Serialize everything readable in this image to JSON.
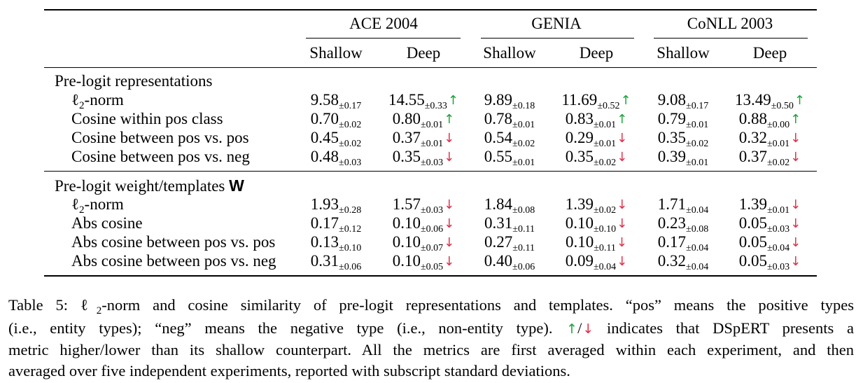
{
  "table": {
    "datasets": [
      {
        "name": "ACE 2004",
        "cols": [
          "Shallow",
          "Deep"
        ]
      },
      {
        "name": "GENIA",
        "cols": [
          "Shallow",
          "Deep"
        ]
      },
      {
        "name": "CoNLL 2003",
        "cols": [
          "Shallow",
          "Deep"
        ]
      }
    ],
    "sections": [
      {
        "title": "Pre-logit representations",
        "rows": [
          {
            "label_prefix": "ℓ",
            "label_sub": "2",
            "label_suffix": "-norm",
            "cells": [
              {
                "v": "9.58",
                "s": "±0.17",
                "a": ""
              },
              {
                "v": "14.55",
                "s": "±0.33",
                "a": "up"
              },
              {
                "v": "9.89",
                "s": "±0.18",
                "a": ""
              },
              {
                "v": "11.69",
                "s": "±0.52",
                "a": "up"
              },
              {
                "v": "9.08",
                "s": "±0.17",
                "a": ""
              },
              {
                "v": "13.49",
                "s": "±0.50",
                "a": "up"
              }
            ]
          },
          {
            "label": "Cosine within pos class",
            "cells": [
              {
                "v": "0.70",
                "s": "±0.02",
                "a": ""
              },
              {
                "v": "0.80",
                "s": "±0.01",
                "a": "up"
              },
              {
                "v": "0.78",
                "s": "±0.01",
                "a": ""
              },
              {
                "v": "0.83",
                "s": "±0.01",
                "a": "up"
              },
              {
                "v": "0.79",
                "s": "±0.01",
                "a": ""
              },
              {
                "v": "0.88",
                "s": "±0.00",
                "a": "up"
              }
            ]
          },
          {
            "label": "Cosine between pos vs. pos",
            "cells": [
              {
                "v": "0.45",
                "s": "±0.02",
                "a": ""
              },
              {
                "v": "0.37",
                "s": "±0.01",
                "a": "down"
              },
              {
                "v": "0.54",
                "s": "±0.02",
                "a": ""
              },
              {
                "v": "0.29",
                "s": "±0.01",
                "a": "down"
              },
              {
                "v": "0.35",
                "s": "±0.02",
                "a": ""
              },
              {
                "v": "0.32",
                "s": "±0.01",
                "a": "down"
              }
            ]
          },
          {
            "label": "Cosine between pos vs. neg",
            "cells": [
              {
                "v": "0.48",
                "s": "±0.03",
                "a": ""
              },
              {
                "v": "0.35",
                "s": "±0.03",
                "a": "down"
              },
              {
                "v": "0.55",
                "s": "±0.01",
                "a": ""
              },
              {
                "v": "0.35",
                "s": "±0.02",
                "a": "down"
              },
              {
                "v": "0.39",
                "s": "±0.01",
                "a": ""
              },
              {
                "v": "0.37",
                "s": "±0.02",
                "a": "down"
              }
            ]
          }
        ]
      },
      {
        "title": "Pre-logit weight/templates ",
        "title_bold": "W",
        "rows": [
          {
            "label_prefix": "ℓ",
            "label_sub": "2",
            "label_suffix": "-norm",
            "cells": [
              {
                "v": "1.93",
                "s": "±0.28",
                "a": ""
              },
              {
                "v": "1.57",
                "s": "±0.03",
                "a": "down"
              },
              {
                "v": "1.84",
                "s": "±0.08",
                "a": ""
              },
              {
                "v": "1.39",
                "s": "±0.02",
                "a": "down"
              },
              {
                "v": "1.71",
                "s": "±0.04",
                "a": ""
              },
              {
                "v": "1.39",
                "s": "±0.01",
                "a": "down"
              }
            ]
          },
          {
            "label": "Abs cosine",
            "cells": [
              {
                "v": "0.17",
                "s": "±0.12",
                "a": ""
              },
              {
                "v": "0.10",
                "s": "±0.06",
                "a": "down"
              },
              {
                "v": "0.31",
                "s": "±0.11",
                "a": ""
              },
              {
                "v": "0.10",
                "s": "±0.10",
                "a": "down"
              },
              {
                "v": "0.23",
                "s": "±0.08",
                "a": ""
              },
              {
                "v": "0.05",
                "s": "±0.03",
                "a": "down"
              }
            ]
          },
          {
            "label": "Abs cosine between pos vs. pos",
            "cells": [
              {
                "v": "0.13",
                "s": "±0.10",
                "a": ""
              },
              {
                "v": "0.10",
                "s": "±0.07",
                "a": "down"
              },
              {
                "v": "0.27",
                "s": "±0.11",
                "a": ""
              },
              {
                "v": "0.10",
                "s": "±0.11",
                "a": "down"
              },
              {
                "v": "0.17",
                "s": "±0.04",
                "a": ""
              },
              {
                "v": "0.05",
                "s": "±0.04",
                "a": "down"
              }
            ]
          },
          {
            "label": "Abs cosine between pos vs. neg",
            "cells": [
              {
                "v": "0.31",
                "s": "±0.06",
                "a": ""
              },
              {
                "v": "0.10",
                "s": "±0.05",
                "a": "down"
              },
              {
                "v": "0.40",
                "s": "±0.06",
                "a": ""
              },
              {
                "v": "0.09",
                "s": "±0.04",
                "a": "down"
              },
              {
                "v": "0.32",
                "s": "±0.04",
                "a": ""
              },
              {
                "v": "0.05",
                "s": "±0.03",
                "a": "down"
              }
            ]
          }
        ]
      }
    ]
  },
  "arrows": {
    "up": "↑",
    "down": "↓",
    "up_color": "#1aa33a",
    "down_color": "#e0304a"
  },
  "caption": {
    "l1_a": "Table 5: ",
    "l1_ell": "ℓ",
    "l1_sub": "2",
    "l1_b": "-norm and cosine similarity of pre-logit representations and templates. “pos” means the positive types",
    "l2_a": "(i.e., entity types); “neg” means the negative type (i.e., non-entity type). ",
    "l2_sep": "/",
    "l2_b": " indicates that DSpERT presents a",
    "l3": "metric higher/lower than its shallow counterpart. All the metrics are first averaged within each experiment, and then",
    "l4": "averaged over five independent experiments, reported with subscript standard deviations."
  }
}
